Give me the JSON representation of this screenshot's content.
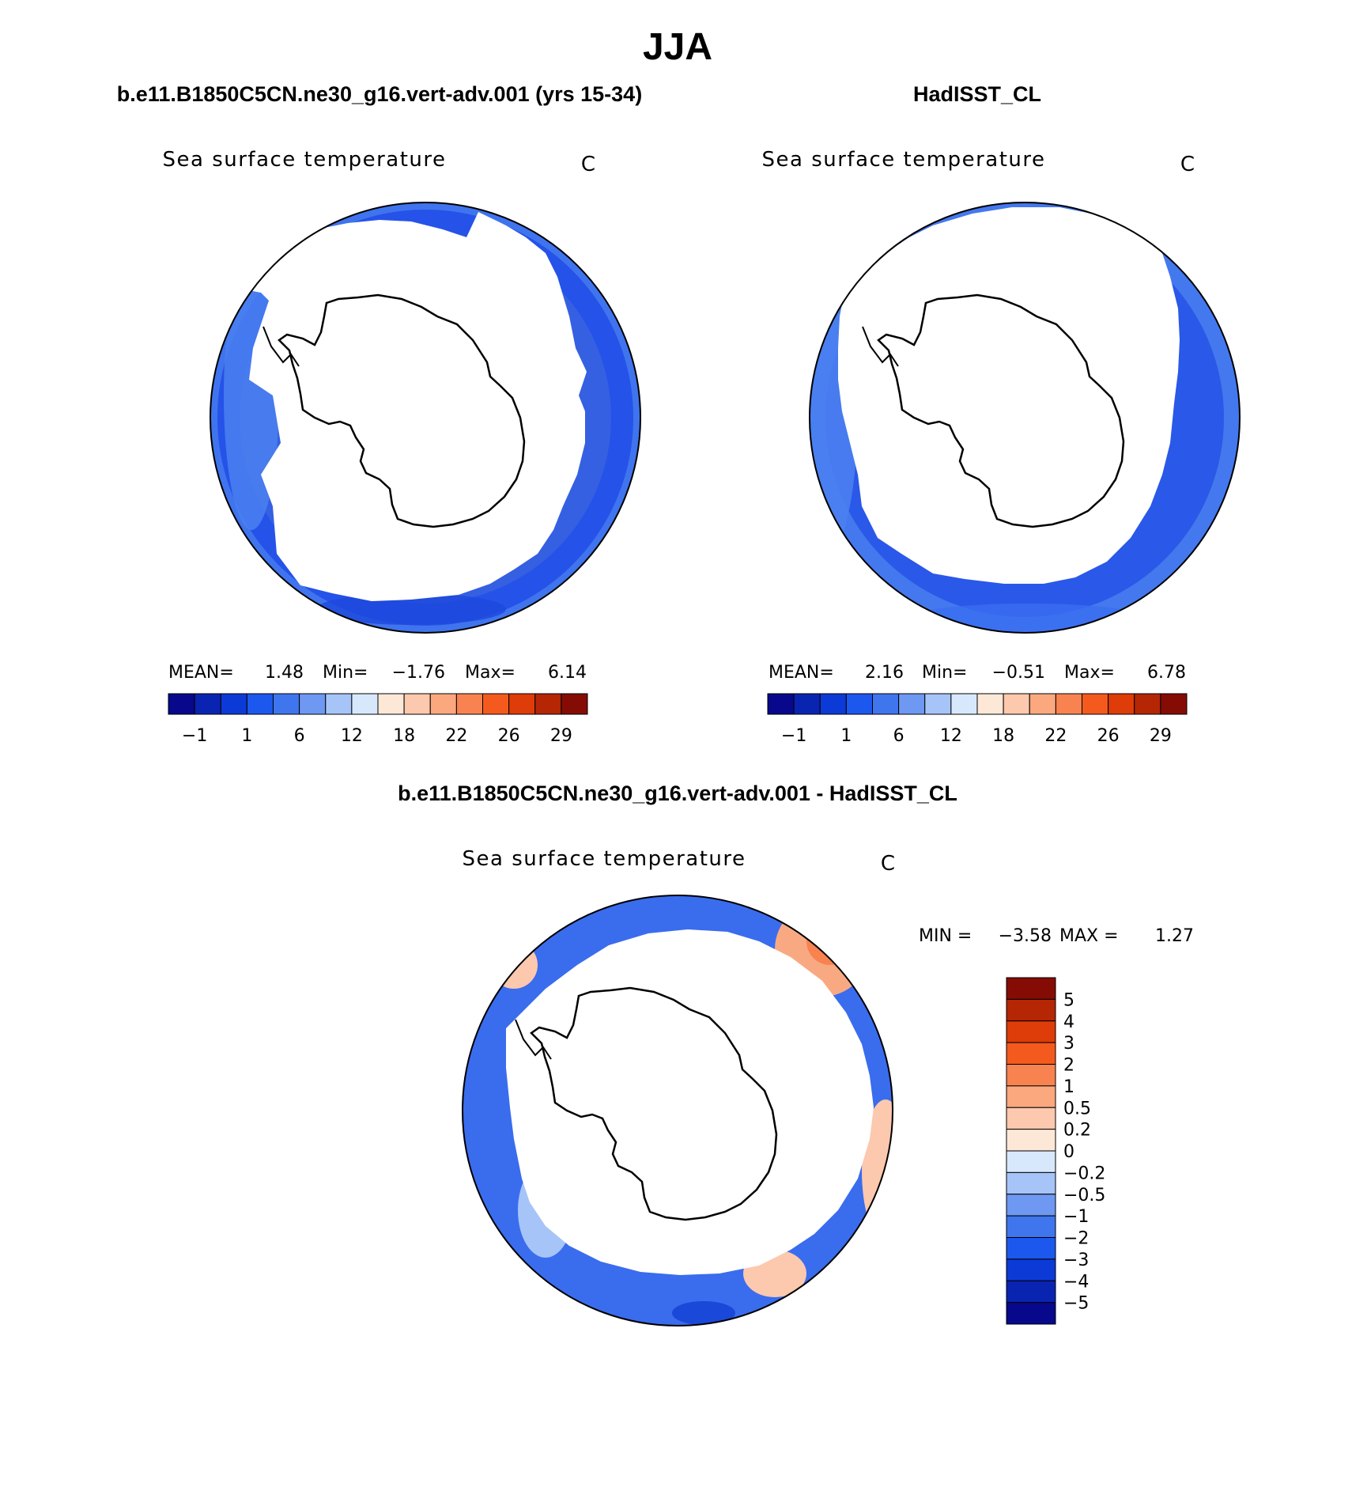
{
  "season": "JJA",
  "panels": [
    {
      "header": "b.e11.B1850C5CN.ne30_g16.vert-adv.001 (yrs 15-34)",
      "variable": "Sea surface temperature",
      "units": "C",
      "stats": {
        "mean_label": "MEAN=",
        "mean": "1.48",
        "min_label": "Min=",
        "min": "−1.76",
        "max_label": "Max=",
        "max": "6.14"
      }
    },
    {
      "header": "HadISST_CL",
      "variable": "Sea surface temperature",
      "units": "C",
      "stats": {
        "mean_label": "MEAN=",
        "mean": "2.16",
        "min_label": "Min=",
        "min": "−0.51",
        "max_label": "Max=",
        "max": "6.78"
      }
    },
    {
      "header": "b.e11.B1850C5CN.ne30_g16.vert-adv.001 - HadISST_CL",
      "variable": "Sea surface temperature",
      "units": "C",
      "stats": {
        "min_label": "MIN =",
        "min": "−3.58",
        "max_label": "MAX =",
        "max": "1.27"
      }
    }
  ],
  "abs_colorbar": {
    "colors": [
      "#08088c",
      "#0a24b2",
      "#0c3ad6",
      "#1c58ee",
      "#3f76ee",
      "#6e98f2",
      "#a6c4f8",
      "#d8e8fc",
      "#fde8d8",
      "#fcc8ae",
      "#fba87e",
      "#f88350",
      "#f45a1e",
      "#de3c08",
      "#b52604",
      "#850c04"
    ],
    "labels": [
      "−1",
      "1",
      "6",
      "12",
      "18",
      "22",
      "26",
      "29"
    ]
  },
  "diff_colorbar": {
    "colors": [
      "#08088c",
      "#0a24b2",
      "#0c3ad6",
      "#1c58ee",
      "#3f76ee",
      "#6e98f2",
      "#a6c4f8",
      "#d8e8fc",
      "#fde8d8",
      "#fcc8ae",
      "#fba87e",
      "#f88350",
      "#f45a1e",
      "#de3c08",
      "#b52604",
      "#850c04"
    ],
    "labels": [
      "5",
      "4",
      "3",
      "2",
      "1",
      "0.5",
      "0.2",
      "0",
      "−0.2",
      "−0.5",
      "−1",
      "−2",
      "−3",
      "−4",
      "−5"
    ]
  }
}
